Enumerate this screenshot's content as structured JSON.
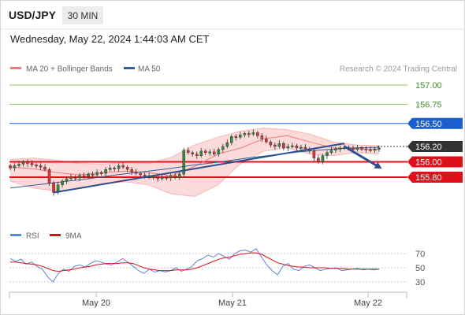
{
  "header": {
    "symbol": "USD/JPY",
    "timeframe": "30 MIN",
    "datetime": "Wednesday, May 22, 2024 1:44:03 AM CET"
  },
  "legend": {
    "ma20": "MA 20 + Bollinger Bands",
    "ma50": "MA 50",
    "credit": "Research © 2024 Trading Central"
  },
  "rsi_legend": {
    "rsi": "RSI",
    "ma": "9MA"
  },
  "colors": {
    "candle_up": "#2f8a3c",
    "candle_down": "#d2343a",
    "ma20": "#f07a7a",
    "bollinger_fill": "#fbd6d6",
    "ma50": "#2e5f9e",
    "trendline": "#2c4f8f",
    "level_green": "#8cc466",
    "level_blue": "#1b5fcf",
    "level_red": "#e0101a",
    "current_price": "#333333",
    "rsi": "#5b86d6",
    "rsi_ma": "#e0101a"
  },
  "chart_data": [
    {
      "type": "candlestick",
      "title": "USD/JPY",
      "y_ticks": [
        "157.00",
        "156.75",
        "156.50",
        "156.20",
        "156.00",
        "155.80"
      ],
      "x_ticks": [
        "May 20",
        "May 21",
        "May 22"
      ],
      "levels": [
        {
          "value": 157.0,
          "label": "157.00",
          "style": "green"
        },
        {
          "value": 156.75,
          "label": "156.75",
          "style": "green"
        },
        {
          "value": 156.5,
          "label": "156.50",
          "style": "blue"
        },
        {
          "value": 156.2,
          "label": "156.20",
          "style": "current"
        },
        {
          "value": 156.0,
          "label": "156.00",
          "style": "red"
        },
        {
          "value": 155.8,
          "label": "155.80",
          "style": "red"
        }
      ],
      "close_series": [
        155.92,
        155.95,
        155.97,
        156.0,
        155.98,
        155.96,
        155.95,
        155.93,
        155.9,
        155.72,
        155.6,
        155.7,
        155.75,
        155.78,
        155.8,
        155.79,
        155.82,
        155.81,
        155.84,
        155.83,
        155.86,
        155.85,
        155.9,
        155.92,
        155.91,
        155.95,
        155.93,
        155.9,
        155.87,
        155.85,
        155.83,
        155.82,
        155.8,
        155.81,
        155.78,
        155.8,
        155.79,
        155.82,
        155.8,
        155.84,
        156.15,
        156.12,
        156.1,
        156.08,
        156.14,
        156.12,
        156.13,
        156.1,
        156.16,
        156.2,
        156.25,
        156.33,
        156.32,
        156.35,
        156.37,
        156.36,
        156.38,
        156.34,
        156.3,
        156.26,
        156.22,
        156.2,
        156.24,
        156.18,
        156.2,
        156.21,
        156.18,
        156.19,
        156.17,
        156.14,
        156.05,
        156.0,
        156.08,
        156.12,
        156.15,
        156.17,
        156.18,
        156.19,
        156.18,
        156.16,
        156.18,
        156.17,
        156.16,
        156.15,
        156.17,
        156.18
      ],
      "trendlines": [
        {
          "from": [
            10,
            155.6
          ],
          "to": [
            77,
            156.24
          ]
        },
        {
          "from": [
            77,
            156.2
          ],
          "to": [
            85,
            155.85
          ],
          "style": "projection-arrow"
        }
      ],
      "ma50_series": [
        155.66,
        155.7,
        155.74,
        155.78,
        155.83,
        155.87,
        155.91,
        155.96,
        156.0,
        156.05,
        156.09,
        156.13,
        156.16,
        156.18,
        156.19
      ],
      "ma20_series": [
        155.93,
        155.91,
        155.86,
        155.83,
        155.86,
        155.88,
        155.86,
        155.82,
        155.94,
        156.1,
        156.18,
        156.3,
        156.34,
        156.26,
        156.18,
        156.17,
        156.16
      ],
      "bollinger_upper": [
        156.03,
        156.05,
        156.02,
        155.98,
        155.97,
        155.99,
        155.98,
        156.06,
        156.22,
        156.32,
        156.4,
        156.44,
        156.42,
        156.36,
        156.26,
        156.22,
        156.21
      ],
      "bollinger_lower": [
        155.75,
        155.66,
        155.62,
        155.65,
        155.72,
        155.74,
        155.7,
        155.58,
        155.55,
        155.7,
        155.98,
        156.14,
        156.18,
        156.1,
        156.08,
        156.12,
        156.1
      ]
    },
    {
      "type": "line",
      "title": "RSI",
      "y_ticks": [
        "70",
        "50",
        "30"
      ],
      "ylim": [
        25,
        78
      ],
      "series": [
        {
          "name": "RSI",
          "values": [
            63,
            59,
            62,
            55,
            58,
            52,
            48,
            37,
            30,
            42,
            48,
            45,
            52,
            54,
            51,
            56,
            60,
            58,
            55,
            54,
            58,
            63,
            58,
            52,
            46,
            42,
            48,
            44,
            46,
            44,
            46,
            50,
            45,
            48,
            52,
            60,
            63,
            68,
            65,
            70,
            66,
            62,
            70,
            74,
            75,
            72,
            77,
            65,
            54,
            46,
            40,
            52,
            56,
            48,
            46,
            52,
            54,
            50,
            46,
            48,
            49,
            50,
            46,
            47,
            48,
            49,
            47,
            48,
            47,
            48
          ]
        },
        {
          "name": "9MA",
          "values": [
            58,
            58,
            57,
            56,
            55,
            54,
            52,
            49,
            46,
            45,
            46,
            47,
            48,
            50,
            51,
            52,
            54,
            55,
            56,
            56,
            56,
            57,
            57,
            56,
            53,
            50,
            48,
            47,
            46,
            46,
            46,
            47,
            47,
            47,
            48,
            50,
            53,
            56,
            59,
            62,
            64,
            65,
            67,
            69,
            70,
            71,
            71,
            69,
            65,
            61,
            57,
            55,
            53,
            52,
            51,
            51,
            50,
            50,
            50,
            50,
            49,
            49,
            49,
            48,
            48,
            48,
            48,
            48,
            48,
            48
          ]
        }
      ]
    }
  ]
}
